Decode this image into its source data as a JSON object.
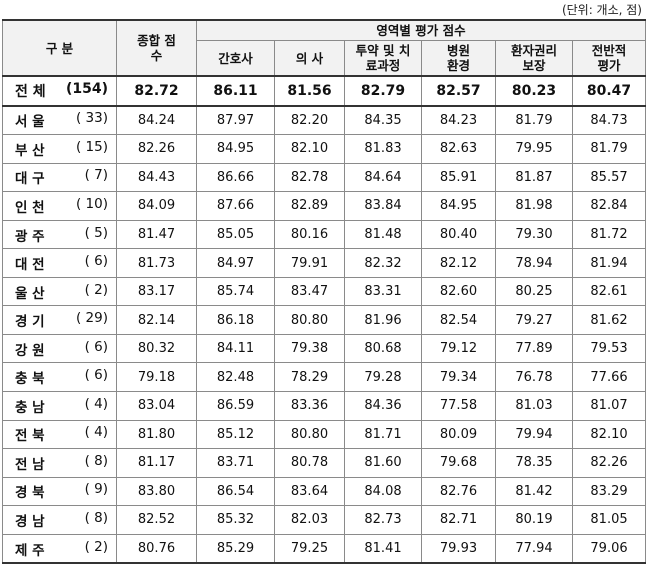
{
  "unit_note": "(단위: 개소, 점)",
  "headers": {
    "category": "구 분",
    "total_score": "종합 점수",
    "area_group": "영역별 평가 점수",
    "areas": [
      "간호사",
      "의 사",
      "투약 및 치료과정",
      "병원 환경",
      "환자권리 보장",
      "전반적 평가"
    ]
  },
  "rows": [
    {
      "region": "전 체",
      "count": "(154)",
      "scores": [
        "82.72",
        "86.11",
        "81.56",
        "82.79",
        "82.57",
        "80.23",
        "80.47"
      ]
    },
    {
      "region": "서 울",
      "count": "( 33)",
      "scores": [
        "84.24",
        "87.97",
        "82.20",
        "84.35",
        "84.23",
        "81.79",
        "84.73"
      ]
    },
    {
      "region": "부 산",
      "count": "( 15)",
      "scores": [
        "82.26",
        "84.95",
        "82.10",
        "81.83",
        "82.63",
        "79.95",
        "81.79"
      ]
    },
    {
      "region": "대 구",
      "count": "( 7)",
      "scores": [
        "84.43",
        "86.66",
        "82.78",
        "84.64",
        "85.91",
        "81.87",
        "85.57"
      ]
    },
    {
      "region": "인 천",
      "count": "( 10)",
      "scores": [
        "84.09",
        "87.66",
        "82.89",
        "83.84",
        "84.95",
        "81.98",
        "82.84"
      ]
    },
    {
      "region": "광 주",
      "count": "( 5)",
      "scores": [
        "81.47",
        "85.05",
        "80.16",
        "81.48",
        "80.40",
        "79.30",
        "81.72"
      ]
    },
    {
      "region": "대 전",
      "count": "( 6)",
      "scores": [
        "81.73",
        "84.97",
        "79.91",
        "82.32",
        "82.12",
        "78.94",
        "81.94"
      ]
    },
    {
      "region": "울 산",
      "count": "( 2)",
      "scores": [
        "83.17",
        "85.74",
        "83.47",
        "83.31",
        "82.60",
        "80.25",
        "82.61"
      ]
    },
    {
      "region": "경 기",
      "count": "( 29)",
      "scores": [
        "82.14",
        "86.18",
        "80.80",
        "81.96",
        "82.54",
        "79.27",
        "81.62"
      ]
    },
    {
      "region": "강 원",
      "count": "( 6)",
      "scores": [
        "80.32",
        "84.11",
        "79.38",
        "80.68",
        "79.12",
        "77.89",
        "79.53"
      ]
    },
    {
      "region": "충 북",
      "count": "( 6)",
      "scores": [
        "79.18",
        "82.48",
        "78.29",
        "79.28",
        "79.34",
        "76.78",
        "77.66"
      ]
    },
    {
      "region": "충 남",
      "count": "( 4)",
      "scores": [
        "83.04",
        "86.59",
        "83.36",
        "84.36",
        "77.58",
        "81.03",
        "81.07"
      ]
    },
    {
      "region": "전 북",
      "count": "( 4)",
      "scores": [
        "81.80",
        "85.12",
        "80.80",
        "81.71",
        "80.09",
        "79.94",
        "82.10"
      ]
    },
    {
      "region": "전 남",
      "count": "( 8)",
      "scores": [
        "81.17",
        "83.71",
        "80.78",
        "81.60",
        "79.68",
        "78.35",
        "82.26"
      ]
    },
    {
      "region": "경 북",
      "count": "( 9)",
      "scores": [
        "83.80",
        "86.54",
        "83.64",
        "84.08",
        "82.76",
        "81.42",
        "83.29"
      ]
    },
    {
      "region": "경 남",
      "count": "( 8)",
      "scores": [
        "82.52",
        "85.32",
        "82.03",
        "82.73",
        "82.71",
        "80.19",
        "81.05"
      ]
    },
    {
      "region": "제 주",
      "count": "( 2)",
      "scores": [
        "80.76",
        "85.29",
        "79.25",
        "81.41",
        "79.93",
        "77.94",
        "79.06"
      ]
    }
  ]
}
